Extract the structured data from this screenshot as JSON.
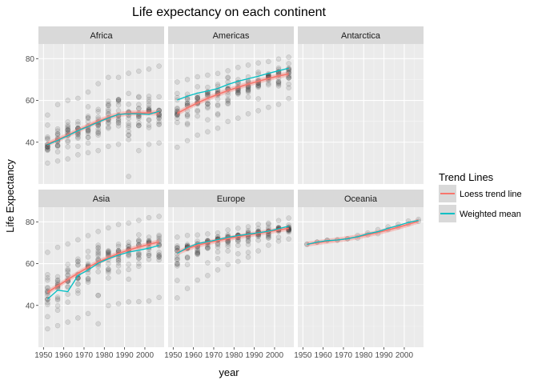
{
  "chart_data": {
    "type": "scatter",
    "title": "Life expectancy on each continent",
    "xlabel": "year",
    "ylabel": "Life Expectancy",
    "xlim": [
      1947.5,
      2009.5
    ],
    "ylim": [
      20,
      87
    ],
    "x_ticks": [
      1950,
      1960,
      1970,
      1980,
      1990,
      2000
    ],
    "x_tick_labels": [
      "1950",
      "1960",
      "1970",
      "1980",
      "1990",
      "2000"
    ],
    "y_ticks": [
      40,
      60,
      80
    ],
    "y_tick_labels": [
      "40",
      "60",
      "80"
    ],
    "grid": true,
    "facet_layout": "2 rows x 3 columns",
    "point_years": [
      1952,
      1957,
      1962,
      1967,
      1972,
      1977,
      1982,
      1987,
      1992,
      1997,
      2002,
      2007
    ],
    "legend": {
      "title": "Trend Lines",
      "position": "right",
      "items": [
        {
          "label": "Loess trend line",
          "color": "#F8766D"
        },
        {
          "label": "Weighted mean",
          "color": "#00BFC4"
        }
      ]
    },
    "facets": [
      {
        "label": "Africa",
        "has_data": true,
        "point_stats": [
          {
            "min": 30,
            "max": 53
          },
          {
            "min": 31,
            "max": 58
          },
          {
            "min": 32,
            "max": 60
          },
          {
            "min": 34,
            "max": 61
          },
          {
            "min": 35,
            "max": 64
          },
          {
            "min": 36,
            "max": 68
          },
          {
            "min": 38,
            "max": 71
          },
          {
            "min": 39,
            "max": 71
          },
          {
            "min": 23.6,
            "max": 73
          },
          {
            "min": 36,
            "max": 74
          },
          {
            "min": 39,
            "max": 75
          },
          {
            "min": 39.6,
            "max": 76.4
          }
        ],
        "loess": [
          39.2,
          41.2,
          43.3,
          45.6,
          47.8,
          50.0,
          51.9,
          53.2,
          53.9,
          54.0,
          54.0,
          54.1
        ],
        "weighted_mean": [
          38.8,
          40.9,
          43.1,
          45.5,
          47.5,
          49.6,
          51.6,
          53.3,
          53.6,
          53.6,
          53.3,
          54.8
        ]
      },
      {
        "label": "Americas",
        "has_data": true,
        "point_stats": [
          {
            "min": 37.6,
            "max": 68.8
          },
          {
            "min": 40.7,
            "max": 70
          },
          {
            "min": 43.4,
            "max": 71.3
          },
          {
            "min": 45.0,
            "max": 72.1
          },
          {
            "min": 46.7,
            "max": 72.9
          },
          {
            "min": 49.9,
            "max": 74.2
          },
          {
            "min": 51.5,
            "max": 75.8
          },
          {
            "min": 53.6,
            "max": 76.9
          },
          {
            "min": 55.1,
            "max": 77.9
          },
          {
            "min": 56.7,
            "max": 78.6
          },
          {
            "min": 58.1,
            "max": 79.8
          },
          {
            "min": 60.9,
            "max": 80.7
          }
        ],
        "loess": [
          53.8,
          56.4,
          58.8,
          61.0,
          62.9,
          64.7,
          66.3,
          67.8,
          69.2,
          70.5,
          71.7,
          72.7
        ],
        "weighted_mean": [
          60.2,
          62.0,
          63.5,
          64.5,
          65.7,
          67.6,
          69.2,
          70.4,
          71.6,
          73.0,
          74.2,
          75.4
        ]
      },
      {
        "label": "Antarctica",
        "has_data": false
      },
      {
        "label": "Asia",
        "has_data": true,
        "point_stats": [
          {
            "min": 28.8,
            "max": 65.4
          },
          {
            "min": 30.3,
            "max": 67.8
          },
          {
            "min": 32.0,
            "max": 69.4
          },
          {
            "min": 34.0,
            "max": 71.4
          },
          {
            "min": 36.1,
            "max": 73.4
          },
          {
            "min": 31.2,
            "max": 75.4
          },
          {
            "min": 39.9,
            "max": 77.1
          },
          {
            "min": 40.8,
            "max": 78.7
          },
          {
            "min": 41.7,
            "max": 79.4
          },
          {
            "min": 41.8,
            "max": 80.7
          },
          {
            "min": 42.1,
            "max": 82.0
          },
          {
            "min": 43.8,
            "max": 82.6
          }
        ],
        "loess": [
          46.3,
          49.3,
          52.4,
          55.4,
          58.2,
          60.7,
          62.9,
          64.8,
          66.5,
          67.9,
          69.2,
          70.4
        ],
        "weighted_mean": [
          43.0,
          47.3,
          46.6,
          54.3,
          56.9,
          60.2,
          62.3,
          64.1,
          65.5,
          66.4,
          67.4,
          68.7
        ]
      },
      {
        "label": "Europe",
        "has_data": true,
        "point_stats": [
          {
            "min": 43.6,
            "max": 72.7
          },
          {
            "min": 48.1,
            "max": 73.5
          },
          {
            "min": 52.1,
            "max": 73.7
          },
          {
            "min": 54.3,
            "max": 74.2
          },
          {
            "min": 57.0,
            "max": 74.7
          },
          {
            "min": 59.5,
            "max": 76.1
          },
          {
            "min": 61.0,
            "max": 76.9
          },
          {
            "min": 63.1,
            "max": 77.6
          },
          {
            "min": 66.1,
            "max": 78.8
          },
          {
            "min": 68.8,
            "max": 79.4
          },
          {
            "min": 70.8,
            "max": 80.6
          },
          {
            "min": 71.8,
            "max": 81.8
          }
        ],
        "loess": [
          65.2,
          67.2,
          68.8,
          70.0,
          71.0,
          72.0,
          72.9,
          73.7,
          74.5,
          75.3,
          76.1,
          76.9
        ],
        "weighted_mean": [
          64.9,
          67.7,
          69.6,
          70.5,
          71.5,
          72.6,
          73.4,
          74.1,
          74.8,
          75.5,
          76.7,
          77.9
        ]
      },
      {
        "label": "Oceania",
        "has_data": true,
        "point_stats": [
          {
            "min": 69.1,
            "max": 69.4
          },
          {
            "min": 70.3,
            "max": 70.3
          },
          {
            "min": 71.2,
            "max": 71.2
          },
          {
            "min": 71.1,
            "max": 71.5
          },
          {
            "min": 71.9,
            "max": 71.9
          },
          {
            "min": 72.2,
            "max": 73.5
          },
          {
            "min": 73.8,
            "max": 74.7
          },
          {
            "min": 74.3,
            "max": 76.3
          },
          {
            "min": 76.3,
            "max": 77.6
          },
          {
            "min": 77.6,
            "max": 78.8
          },
          {
            "min": 79.1,
            "max": 80.4
          },
          {
            "min": 80.2,
            "max": 81.2
          }
        ],
        "loess": [
          69.3,
          70.0,
          70.7,
          71.3,
          72.0,
          72.8,
          73.8,
          74.9,
          76.1,
          77.4,
          78.8,
          80.3
        ],
        "weighted_mean": [
          69.2,
          70.3,
          71.0,
          71.3,
          71.9,
          72.9,
          74.3,
          75.3,
          76.9,
          78.2,
          79.7,
          80.7
        ]
      }
    ]
  }
}
